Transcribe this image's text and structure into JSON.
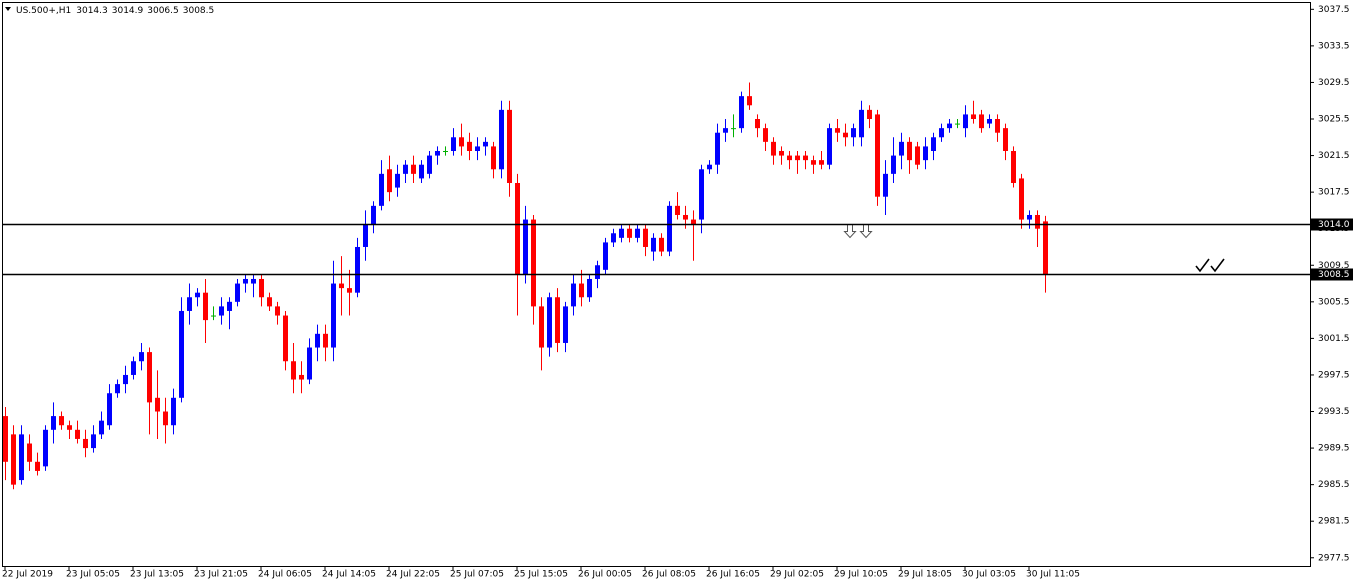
{
  "chart_data": {
    "type": "candlestick",
    "symbol": "US.500+,H1",
    "up_color": "#0000ff",
    "down_color": "#ff0000",
    "doji_color": "#00b000",
    "categories": [
      "22 Jul 2019",
      null,
      null,
      null,
      null,
      null,
      null,
      null,
      "23 Jul 05:05",
      null,
      null,
      null,
      null,
      null,
      null,
      null,
      "23 Jul 13:05",
      null,
      null,
      null,
      null,
      null,
      null,
      null,
      "23 Jul 21:05",
      null,
      null,
      null,
      null,
      null,
      null,
      null,
      "24 Jul 06:05",
      null,
      null,
      null,
      null,
      null,
      null,
      null,
      "24 Jul 14:05",
      null,
      null,
      null,
      null,
      null,
      null,
      null,
      "24 Jul 22:05",
      null,
      null,
      null,
      null,
      null,
      null,
      null,
      "25 Jul 07:05",
      null,
      null,
      null,
      null,
      null,
      null,
      null,
      "25 Jul 15:05",
      null,
      null,
      null,
      null,
      null,
      null,
      null,
      "26 Jul 00:05",
      null,
      null,
      null,
      null,
      null,
      null,
      null,
      "26 Jul 08:05",
      null,
      null,
      null,
      null,
      null,
      null,
      null,
      "26 Jul 16:05",
      null,
      null,
      null,
      null,
      null,
      null,
      null,
      "29 Jul 02:05",
      null,
      null,
      null,
      null,
      null,
      null,
      null,
      "29 Jul 10:05",
      null,
      null,
      null,
      null,
      null,
      null,
      null,
      "29 Jul 18:05",
      null,
      null,
      null,
      null,
      null,
      null,
      null,
      "30 Jul 03:05",
      null,
      null,
      null,
      null,
      null,
      null,
      null,
      "30 Jul 11:05",
      null,
      null
    ],
    "open": [
      2993,
      2991,
      2986,
      2990,
      2988,
      2987.5,
      2991.5,
      2993,
      2992,
      2991.5,
      2990.5,
      2989.5,
      2991,
      2992,
      2995.5,
      2996.5,
      2997.5,
      2999,
      3000,
      2995,
      2993.5,
      2992,
      2995,
      3004.5,
      3006,
      3006.5,
      3004,
      3004,
      3004.5,
      3005.5,
      3007.5,
      3007.5,
      3008,
      3006,
      3005,
      3004,
      2999,
      2997.5,
      2997,
      3000.5,
      3002,
      3000.5,
      3007.5,
      3007,
      3006.5,
      3011.5,
      3014,
      3016,
      3020,
      3018,
      3019.5,
      3020.5,
      3019,
      3019.5,
      3021.5,
      3022,
      3022,
      3023.5,
      3023,
      3022,
      3022.5,
      3022.5,
      3020,
      3026.5,
      3018.5,
      3008.5,
      3014.5,
      3005,
      3000.5,
      3006,
      3001,
      3005,
      3007.5,
      3006,
      3008,
      3009,
      3012,
      3012.5,
      3013.5,
      3012.5,
      3013.5,
      3011,
      3012.5,
      3011,
      3016,
      3015,
      3014.5,
      3014.5,
      3020,
      3020.5,
      3024,
      3024.5,
      3024.5,
      3028,
      3025.5,
      3024.5,
      3023,
      3022,
      3021.5,
      3021.5,
      3021.5,
      3021,
      3021,
      3020.5,
      3024.5,
      3024,
      3023.5,
      3023.5,
      3026.5,
      3026,
      3017,
      3019.5,
      3021.5,
      3023,
      3022.5,
      3021,
      3022,
      3023.5,
      3024.5,
      3025,
      3024.5,
      3026,
      3026,
      3025,
      3025.5,
      3024.5,
      3022,
      3019,
      3014.5,
      3015,
      3014.3
    ],
    "high": [
      2994,
      2992,
      2992,
      2991,
      2989,
      2992,
      2994.5,
      2993.5,
      2992.5,
      2992.5,
      2991.5,
      2992,
      2993.5,
      2996.5,
      2997,
      2998.5,
      2999.5,
      3001,
      3000.5,
      2998,
      2995,
      2996,
      3006,
      3007.5,
      3007,
      3008,
      3005,
      3006,
      3006,
      3008,
      3008.5,
      3008.5,
      3008.5,
      3006.5,
      3005.5,
      3004.5,
      3001,
      2999,
      3001.5,
      3003,
      3003,
      3010,
      3010.5,
      3009,
      3012.5,
      3015.5,
      3016.5,
      3021,
      3021.5,
      3020.5,
      3021,
      3021.5,
      3021,
      3022,
      3022.5,
      3022.5,
      3024.5,
      3025,
      3024,
      3023.5,
      3023.5,
      3023,
      3027.5,
      3027.5,
      3019.5,
      3016,
      3015,
      3006,
      3006.5,
      3007,
      3005.5,
      3008.5,
      3009,
      3008.5,
      3010,
      3012.5,
      3013.5,
      3014,
      3014,
      3014,
      3014,
      3013,
      3013,
      3016.5,
      3017.5,
      3016,
      3015.5,
      3020.5,
      3021,
      3025,
      3025.5,
      3026,
      3028.5,
      3029.5,
      3026,
      3025,
      3023.5,
      3022.5,
      3022,
      3022,
      3022,
      3021.5,
      3022,
      3025,
      3025.5,
      3025,
      3025,
      3027.5,
      3027,
      3026.5,
      3021,
      3023.5,
      3024,
      3023.5,
      3023,
      3023.5,
      3024,
      3025,
      3025.5,
      3025.5,
      3027,
      3027.5,
      3026.5,
      3026,
      3026,
      3025,
      3022.5,
      3019.5,
      3015.5,
      3015.5,
      3014.9
    ],
    "low": [
      2986,
      2985,
      2985.5,
      2987,
      2986.5,
      2987,
      2990,
      2991.5,
      2990.5,
      2990,
      2988.5,
      2989,
      2990.5,
      2991.5,
      2995,
      2995.5,
      2997,
      2998,
      2991,
      2990.5,
      2990,
      2991,
      2994.5,
      3003,
      3005,
      3001,
      3003.5,
      3003,
      3002.5,
      3005,
      3006.5,
      3006,
      3005,
      3004.5,
      3003,
      2998,
      2995.5,
      2995.5,
      2996.5,
      2999,
      2999,
      2999,
      3004,
      3004,
      3006,
      3010,
      3013,
      3015.5,
      3016.5,
      3017,
      3018.5,
      3018.5,
      3018.5,
      3019,
      3020.5,
      3021.5,
      3021.5,
      3021.5,
      3021,
      3021,
      3021.5,
      3019,
      3019,
      3017,
      3004,
      3007.5,
      3003,
      2998,
      2999.5,
      3000,
      3000,
      3004,
      3005,
      3005.5,
      3007,
      3008.5,
      3011.5,
      3012,
      3012,
      3012,
      3010.5,
      3010,
      3010.5,
      3010.5,
      3014.5,
      3013.5,
      3010,
      3013,
      3019.5,
      3019.5,
      3023,
      3023.5,
      3024,
      3026.5,
      3023.5,
      3022,
      3020.5,
      3020.5,
      3020,
      3019.5,
      3020,
      3019.5,
      3020,
      3020,
      3023,
      3022.5,
      3022.5,
      3022.5,
      3024.5,
      3016,
      3015,
      3018.5,
      3020,
      3019.5,
      3020,
      3020,
      3021,
      3023,
      3024,
      3024.5,
      3023.5,
      3025,
      3024,
      3024.5,
      3023,
      3021,
      3018,
      3013.5,
      3013.5,
      3011.5,
      3006.5
    ],
    "close": [
      2988,
      2985.5,
      2991,
      2988,
      2987,
      2991.5,
      2993,
      2992,
      2991.5,
      2990.5,
      2989.5,
      2991,
      2992.5,
      2995.5,
      2996.5,
      2997.5,
      2999,
      3000,
      2994.5,
      2993.5,
      2992,
      2995,
      3004.5,
      3006,
      3006.5,
      3003.5,
      3004,
      3005,
      3005.5,
      3007.5,
      3008,
      3008,
      3006,
      3005,
      3004,
      2999,
      2997,
      2997,
      3000.5,
      3002,
      3000.5,
      3007.5,
      3007,
      3006.5,
      3011.5,
      3014,
      3016,
      3019.5,
      3017.5,
      3019.5,
      3020.5,
      3019.5,
      3020.5,
      3021.5,
      3022,
      3022,
      3023.5,
      3022.5,
      3022,
      3022.5,
      3023,
      3020,
      3026.5,
      3018.5,
      3008.5,
      3014.5,
      3005,
      3000.5,
      3006,
      3001,
      3005,
      3007.5,
      3006,
      3008,
      3009.5,
      3012,
      3013,
      3013.5,
      3012.5,
      3013.5,
      3011.5,
      3012.5,
      3011,
      3016,
      3015,
      3014.5,
      3014,
      3020,
      3020.5,
      3024,
      3024.5,
      3024.5,
      3028,
      3027,
      3024.5,
      3023,
      3021.5,
      3021.5,
      3021,
      3021,
      3021,
      3020.5,
      3020.5,
      3024.5,
      3024,
      3023.5,
      3024.5,
      3026.5,
      3025.5,
      3017,
      3019.5,
      3021.5,
      3023,
      3021,
      3020.5,
      3022.5,
      3023.5,
      3024.5,
      3025,
      3025,
      3026,
      3025.5,
      3024.5,
      3025.5,
      3024,
      3022,
      3018.5,
      3014.5,
      3015,
      3013.5,
      3008.5
    ],
    "ylim": [
      2976.6,
      3038.3
    ],
    "yticks": [
      3037.5,
      3033.5,
      3029.5,
      3025.5,
      3021.5,
      3017.5,
      3013.5,
      3009.5,
      3005.5,
      3001.5,
      2997.5,
      2993.5,
      2989.5,
      2985.5,
      2981.5,
      2977.5
    ],
    "hlines": [
      {
        "value": 3014,
        "label": "3014.0"
      },
      {
        "value": 3008.5,
        "label": "3008.5"
      }
    ]
  }
}
